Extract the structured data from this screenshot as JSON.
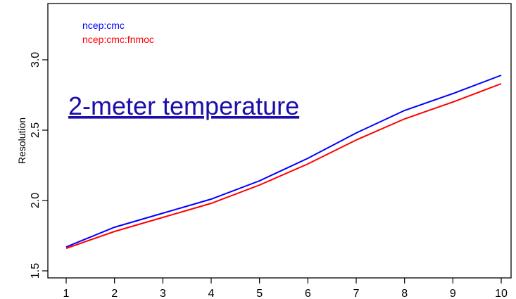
{
  "chart_data": {
    "type": "line",
    "title": "2-meter temperature",
    "xlabel": "",
    "ylabel": "Resolution",
    "x": [
      1,
      2,
      3,
      4,
      5,
      6,
      7,
      8,
      9,
      10
    ],
    "xlim": [
      1,
      10
    ],
    "ylim": [
      1.45,
      3.4
    ],
    "yticks": [
      1.5,
      2.0,
      2.5,
      3.0
    ],
    "ytick_labels": [
      "1.5",
      "2.0",
      "2.5",
      "3.0"
    ],
    "xtick_labels": [
      "1",
      "2",
      "3",
      "4",
      "5",
      "6",
      "7",
      "8",
      "9",
      "10"
    ],
    "grid": false,
    "legend_position": "top-left",
    "series": [
      {
        "name": "ncep:cmc",
        "color": "#0000ff",
        "values": [
          1.67,
          1.81,
          1.91,
          2.01,
          2.14,
          2.3,
          2.48,
          2.64,
          2.76,
          2.89
        ]
      },
      {
        "name": "ncep:cmc:fnmoc",
        "color": "#ff0000",
        "values": [
          1.66,
          1.78,
          1.88,
          1.98,
          2.11,
          2.26,
          2.43,
          2.58,
          2.7,
          2.83
        ]
      }
    ]
  }
}
